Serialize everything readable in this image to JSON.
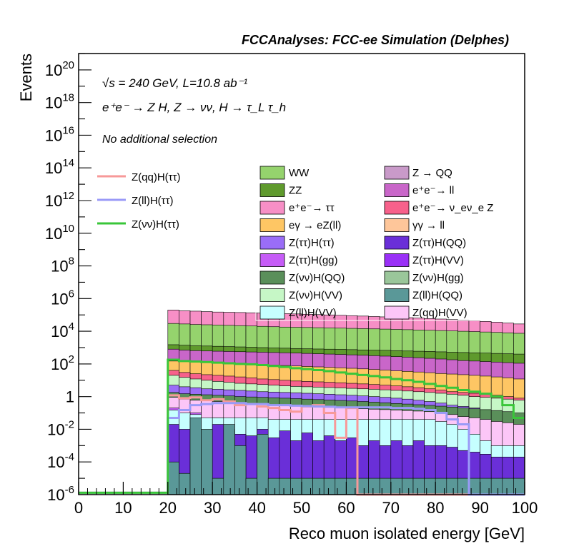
{
  "chart_data": {
    "type": "bar",
    "header": "FCCAnalyses: FCC-ee Simulation (Delphes)",
    "annotations": {
      "sqrt_s": "√s = 240 GeV, L=10.8 ab⁻¹",
      "process": "e⁺e⁻ → Z H, Z → νν, H → τ_L τ_h",
      "selection": "No additional selection"
    },
    "xlabel": "Reco muon isolated energy [GeV]",
    "ylabel": "Events",
    "xlim": [
      0,
      100
    ],
    "ylim": [
      1e-06,
      1e+21
    ],
    "log_y": true,
    "x_ticks": [
      "0",
      "10",
      "20",
      "30",
      "40",
      "50",
      "60",
      "70",
      "80",
      "90",
      "100"
    ],
    "y_ticks": [
      {
        "base": "10",
        "exp": "20",
        "value": 1e+20
      },
      {
        "base": "10",
        "exp": "18",
        "value": 1e+18
      },
      {
        "base": "10",
        "exp": "16",
        "value": 1e+16
      },
      {
        "base": "10",
        "exp": "14",
        "value": 100000000000000.0
      },
      {
        "base": "10",
        "exp": "12",
        "value": 1000000000000.0
      },
      {
        "base": "10",
        "exp": "10",
        "value": 10000000000.0
      },
      {
        "base": "10",
        "exp": "8",
        "value": 100000000.0
      },
      {
        "base": "10",
        "exp": "6",
        "value": 1000000.0
      },
      {
        "base": "10",
        "exp": "4",
        "value": 10000.0
      },
      {
        "base": "10",
        "exp": "2",
        "value": 100.0
      },
      {
        "base": "1",
        "exp": "",
        "value": 1
      },
      {
        "base": "10",
        "exp": "-2",
        "value": 0.01
      },
      {
        "base": "10",
        "exp": "-4",
        "value": 0.0001
      },
      {
        "base": "10",
        "exp": "-6",
        "value": 1e-06
      }
    ],
    "grid": false,
    "bin_edges": [
      20,
      22.5,
      25,
      27.5,
      30,
      32.5,
      35,
      37.5,
      40,
      42.5,
      45,
      47.5,
      50,
      52.5,
      55,
      57.5,
      60,
      62.5,
      65,
      67.5,
      70,
      72.5,
      75,
      77.5,
      80,
      82.5,
      85,
      87.5,
      90,
      92.5,
      95,
      97.5,
      100
    ],
    "stack": [
      {
        "name": "e⁺e⁻ → ττ",
        "color": "#f78fc6",
        "totals": [
          200000,
          180000,
          170000,
          160000,
          150000,
          145000,
          140000,
          135000,
          130000,
          125000,
          120000,
          115000,
          110000,
          105000,
          100000,
          95000,
          90000,
          85000,
          80000,
          76000,
          72000,
          68000,
          64000,
          60000,
          56000,
          52000,
          48000,
          44000,
          40000,
          36000,
          32000,
          28000
        ]
      },
      {
        "name": "WW",
        "color": "#95d36d",
        "totals": [
          30000,
          28000,
          26000,
          25000,
          24000,
          23000,
          22000,
          21000,
          20000,
          19000,
          18000,
          17500,
          17000,
          16500,
          16000,
          15500,
          15000,
          14500,
          14000,
          13500,
          13000,
          12500,
          12000,
          11500,
          11000,
          10500,
          10000,
          9500,
          9000,
          8500,
          8000,
          7500
        ]
      },
      {
        "name": "ZZ",
        "color": "#5f9a2d",
        "totals": [
          1500,
          1400,
          1300,
          1250,
          1200,
          1150,
          1100,
          1050,
          1000,
          950,
          920,
          880,
          850,
          820,
          800,
          780,
          750,
          720,
          700,
          680,
          650,
          620,
          600,
          580,
          550,
          520,
          500,
          480,
          460,
          440,
          420,
          400
        ]
      },
      {
        "name": "e⁺e⁻ → ll",
        "color": "#c966c9",
        "totals": [
          800,
          700,
          650,
          620,
          600,
          580,
          560,
          540,
          520,
          500,
          480,
          460,
          440,
          420,
          400,
          380,
          360,
          340,
          320,
          300,
          280,
          260,
          240,
          220,
          200,
          180,
          160,
          150,
          140,
          130,
          120,
          110
        ]
      },
      {
        "name": "eγ → eZ(ll)",
        "color": "#fec664",
        "totals": [
          150,
          140,
          130,
          120,
          110,
          105,
          100,
          95,
          90,
          85,
          80,
          75,
          70,
          66,
          62,
          58,
          54,
          50,
          46,
          42,
          38,
          35,
          32,
          29,
          26,
          24,
          22,
          20,
          18,
          16,
          14,
          12
        ]
      },
      {
        "name": "e⁺e⁻ → ν_eν_e Z",
        "color": "#f7618b",
        "totals": [
          40,
          30,
          25,
          22,
          20,
          18,
          16,
          14,
          12,
          11,
          10,
          9,
          8.5,
          8,
          7.5,
          7,
          6.5,
          6,
          5.5,
          5,
          4.5,
          4,
          3.5,
          3,
          2.5,
          2,
          1.8,
          1.6,
          1.4,
          1.2,
          1.0,
          0.8
        ]
      },
      {
        "name": "Z(νν)H(VV)",
        "color": "#c6f7c6",
        "totals": [
          20,
          15,
          12,
          10,
          8.5,
          7.5,
          6.5,
          6,
          5.5,
          5,
          4.5,
          4.2,
          4,
          3.8,
          3.6,
          3.4,
          3.2,
          3,
          2.8,
          2.6,
          2.4,
          2.2,
          2,
          1.8,
          1.6,
          1.4,
          1.2,
          1,
          0.9,
          0.8,
          0.7,
          0.6
        ]
      },
      {
        "name": "Z(ττ)H(ττ)",
        "color": "#9a6df7",
        "totals": [
          5,
          4,
          3.5,
          3,
          2.8,
          2.6,
          2.4,
          2.2,
          2,
          1.9,
          1.8,
          1.7,
          1.6,
          1.5,
          1.4,
          1.3,
          1.2,
          1.1,
          1,
          0.9,
          0.8,
          0.7,
          0.6,
          0.5,
          0.4,
          0.3,
          0.25,
          0.2,
          0.15,
          0.12,
          0.1,
          0.08
        ]
      },
      {
        "name": "Z(νν)H(QQ)",
        "color": "#5a8f5a",
        "totals": [
          1.8,
          1.5,
          1.4,
          1.3,
          1.2,
          1.1,
          1,
          0.95,
          0.9,
          0.85,
          0.8,
          0.75,
          0.7,
          0.66,
          0.62,
          0.58,
          0.54,
          0.5,
          0.46,
          0.42,
          0.38,
          0.35,
          0.32,
          0.29,
          0.26,
          0.23,
          0.2,
          0.18,
          0.16,
          0.14,
          0.12,
          0.1
        ]
      },
      {
        "name": "Z(qq)H(VV)",
        "color": "#fcc6f7",
        "totals": [
          0.9,
          0.7,
          0.6,
          0.55,
          0.5,
          0.46,
          0.42,
          0.38,
          0.35,
          0.32,
          0.3,
          0.28,
          0.26,
          0.24,
          0.22,
          0.2,
          0.19,
          0.18,
          0.17,
          0.16,
          0.15,
          0.14,
          0.13,
          0.12,
          0.1,
          0.08,
          0.06,
          0.05,
          0.04,
          0.03,
          0.025,
          0.02
        ]
      },
      {
        "name": "Z(ττ)H(gg)",
        "color": "#c65cf7",
        "totals": [
          0.2,
          0.08,
          0.1,
          0.003,
          0.05,
          0.02,
          0.003,
          0.004,
          0.04,
          0.002,
          0.01,
          0.002,
          0.03,
          0.001,
          0.02,
          0.002,
          0.015,
          0.004,
          0.012,
          0.002,
          0.01,
          0.002,
          0.008,
          0.002,
          0.006,
          0.0015,
          0.002,
          0.001,
          0.001,
          0.001,
          0.001,
          0.001
        ]
      },
      {
        "name": "Z(ll)H(VV)",
        "color": "#c6ffff",
        "totals": [
          0.15,
          0.1,
          0.08,
          0.05,
          0.05,
          0.05,
          0.05,
          0.05,
          0.05,
          0.04,
          0.04,
          0.04,
          0.04,
          0.04,
          0.04,
          0.04,
          0.04,
          0.04,
          0.04,
          0.04,
          0.04,
          0.04,
          0.04,
          0.04,
          0.03,
          0.02,
          0.01,
          0.005,
          0.002,
          0.001,
          0.001,
          0.001
        ]
      },
      {
        "name": "Z(ττ)H(QQ)",
        "color": "#6a2fd8",
        "totals": [
          0.02,
          0.01,
          0.03,
          0.005,
          0.02,
          0.01,
          0.005,
          0.004,
          0.01,
          0.003,
          0.008,
          0.002,
          0.006,
          0.002,
          0.004,
          0.002,
          0.003,
          0.001,
          0.002,
          0.001,
          0.002,
          0.001,
          0.002,
          0.001,
          0.001,
          0.0008,
          0.0005,
          0.0004,
          0.0003,
          0.0002,
          0.0002,
          0.0002
        ]
      },
      {
        "name": "Z(ll)H(QQ)",
        "color": "#5a9898",
        "totals": [
          0.0001,
          2e-05,
          0.05,
          0.01,
          1e-05,
          0.02,
          0.001,
          1e-05,
          0.005,
          1e-05,
          1e-05,
          1e-05,
          1e-05,
          1e-05,
          1e-05,
          1e-05,
          1e-05,
          1e-05,
          1e-05,
          1e-05,
          1e-05,
          1e-05,
          1e-05,
          1e-05,
          1e-05,
          1e-05,
          1e-05,
          1e-05,
          1e-05,
          1e-05,
          1e-05,
          1e-05
        ]
      }
    ],
    "lines": [
      {
        "name": "Z(qq)H(ττ)",
        "color": "#f79999",
        "values": [
          1.2,
          0.8,
          0.9,
          0.6,
          0.7,
          0.5,
          0.3,
          0.35,
          0.25,
          0.2,
          0.15,
          0.12,
          0.25,
          0.3,
          0.1,
          0.003,
          0.2,
          1e-06,
          1e-06,
          1e-06,
          1e-06,
          1e-06,
          1e-06,
          1e-06,
          1e-06,
          1e-06,
          1e-06,
          1e-06,
          1e-06,
          1e-06,
          1e-06,
          1e-06
        ]
      },
      {
        "name": "Z(ll)H(ττ)",
        "color": "#9a9af7",
        "values": [
          0.05,
          0.15,
          0.3,
          0.35,
          0.4,
          0.4,
          0.4,
          0.35,
          0.35,
          0.3,
          0.3,
          0.28,
          0.26,
          0.25,
          0.24,
          0.22,
          0.22,
          0.22,
          0.22,
          0.22,
          0.2,
          0.2,
          0.18,
          0.15,
          0.1,
          0.04,
          0.02,
          1e-06,
          1e-06,
          1e-06,
          1e-06,
          1e-06
        ]
      },
      {
        "name": "Z(νν)H(ττ)",
        "color": "#39c639",
        "values": [
          180,
          150,
          140,
          130,
          120,
          110,
          100,
          95,
          85,
          75,
          65,
          55,
          48,
          42,
          36,
          30,
          25,
          21,
          18,
          15,
          12,
          10,
          8,
          6,
          4.5,
          3.5,
          2.5,
          2,
          1.5,
          1,
          0.3,
          0.05
        ]
      }
    ],
    "legend": {
      "lines": [
        "Z(qq)H(ττ)",
        "Z(ll)H(ττ)",
        "Z(νν)H(ττ)"
      ],
      "fills_left": [
        "WW",
        "ZZ",
        "e⁺e⁻→ ττ",
        "eγ → eZ(ll)",
        "Z(ττ)H(ττ)",
        "Z(ττ)H(gg)",
        "Z(νν)H(QQ)",
        "Z(νν)H(VV)",
        "Z(ll)H(VV)"
      ],
      "fills_left_colors": [
        "#95d36d",
        "#5f9a2d",
        "#f78fc6",
        "#fec664",
        "#9a6df7",
        "#c65cf7",
        "#5a8f5a",
        "#c6f7c6",
        "#c6ffff"
      ],
      "fills_right": [
        "Z → QQ",
        "e⁺e⁻→ ll",
        "e⁺e⁻→ ν_eν_e Z",
        "γγ → ll",
        "Z(ττ)H(QQ)",
        "Z(ττ)H(VV)",
        "Z(νν)H(gg)",
        "Z(ll)H(QQ)",
        "Z(qq)H(VV)"
      ],
      "fills_right_colors": [
        "#c99ac9",
        "#c966c9",
        "#f7618b",
        "#fec69a",
        "#6a2fd8",
        "#9a30f7",
        "#9ac69a",
        "#5a9898",
        "#fcc6f7"
      ],
      "placement": "upper-center"
    }
  }
}
